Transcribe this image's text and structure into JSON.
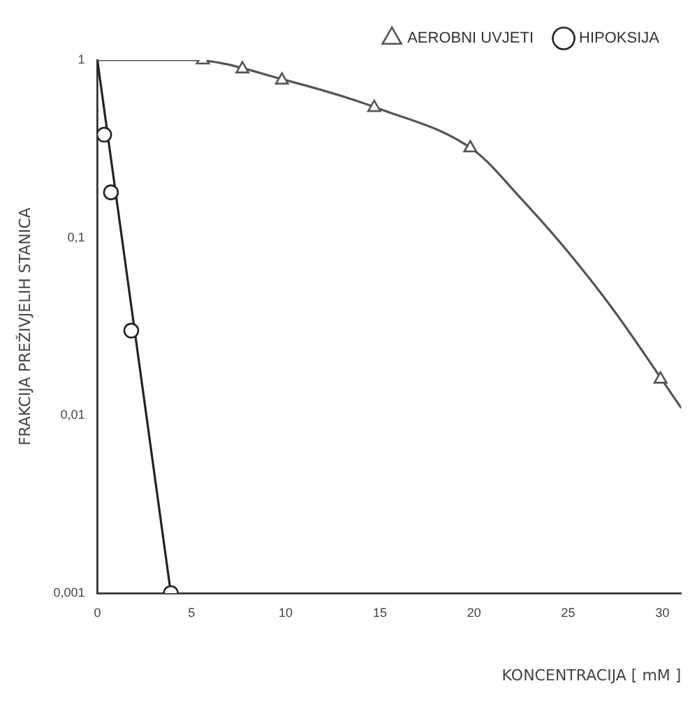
{
  "chart_data": {
    "type": "scatter",
    "xlabel": "KONCENTRACIJA [ mM ]",
    "ylabel": "FRAKCIJA PREŽIVJELIH STANICA",
    "log": "y",
    "grid": false,
    "legend": "top right",
    "xlim": [
      0,
      31
    ],
    "xticks": [
      0,
      5,
      10,
      15,
      20,
      25,
      30
    ],
    "ylim": [
      0.001,
      1
    ],
    "yticks": [
      {
        "value": 0.001,
        "label": "0,001"
      },
      {
        "value": 0.01,
        "label": "0,01"
      },
      {
        "value": 0.1,
        "label": "0,1"
      },
      {
        "value": 1,
        "label": "1"
      }
    ],
    "series": [
      {
        "name": "AEROBNI UVJETI",
        "type": "scatter",
        "marker": "triangle",
        "color": "#555555",
        "x": [
          5.6,
          7.7,
          9.8,
          14.7,
          19.8,
          29.9
        ],
        "values": [
          1.0,
          0.89,
          0.77,
          0.54,
          0.32,
          0.016
        ]
      },
      {
        "name": "HIPOKSIJA",
        "type": "scatter",
        "marker": "circle",
        "color": "#222222",
        "x": [
          0.36,
          0.72,
          1.8,
          3.9
        ],
        "values": [
          0.38,
          0.18,
          0.03,
          0.001
        ]
      },
      {
        "type": "line",
        "marker": "none",
        "color": "#555555",
        "x": [
          0,
          5,
          10,
          15,
          20,
          22.5,
          25,
          27.5,
          31
        ],
        "values": [
          1,
          1,
          0.77,
          0.53,
          0.31,
          0.166,
          0.083,
          0.038,
          0.011
        ]
      },
      {
        "type": "line",
        "marker": "none",
        "color": "#222222",
        "x": [
          0,
          3.9
        ],
        "values": [
          1,
          0.001
        ]
      }
    ]
  }
}
